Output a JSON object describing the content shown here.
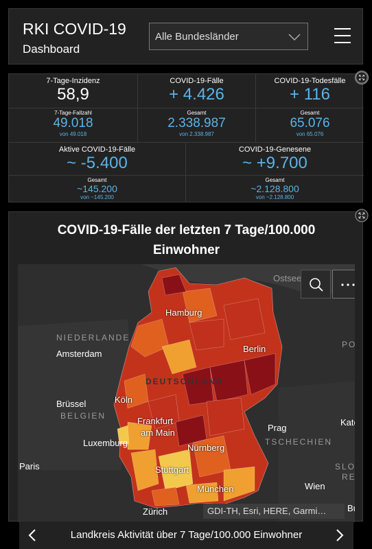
{
  "header": {
    "title": "RKI COVID-19",
    "subtitle": "Dashboard",
    "region_select": "Alle Bundesländer",
    "menu_icon": "hamburger-icon"
  },
  "stats": {
    "incidence": {
      "label": "7-Tage-Inzidenz",
      "value": "58,9",
      "sub_label": "7-Tage-Fallzahl",
      "sub_value": "49.018",
      "sub_from": "von 49.018"
    },
    "cases": {
      "label": "COVID-19-Fälle",
      "value": "+ 4.426",
      "sub_label": "Gesamt",
      "sub_value": "2.338.987",
      "sub_from": "von 2.338.987"
    },
    "deaths": {
      "label": "COVID-19-Todesfälle",
      "value": "+ 116",
      "sub_label": "Gesamt",
      "sub_value": "65.076",
      "sub_from": "von 65.076"
    },
    "active": {
      "label": "Aktive COVID-19-Fälle",
      "value": "~ -5.400",
      "sub_label": "Gesamt",
      "sub_value": "~145.200",
      "sub_from": "von ~145.200"
    },
    "recovered": {
      "label": "COVID-19-Genesene",
      "value": "~ +9.700",
      "sub_label": "Gesamt",
      "sub_value": "~2.128.800",
      "sub_from": "von ~2.128.800"
    }
  },
  "map": {
    "title_line1": "COVID-19-Fälle der letzten 7 Tage/100.000",
    "title_line2": "Einwohner",
    "labels": {
      "ostsee": "Ostsee",
      "hamburg": "Hamburg",
      "niederlande": "NIEDERLANDE",
      "amsterdam": "Amsterdam",
      "berlin": "Berlin",
      "deutschland": "DEUTSCHLAND",
      "koeln": "Köln",
      "bruessel": "Brüssel",
      "belgien": "BELGIEN",
      "frankfurt": "Frankfurt",
      "am_main": "am Main",
      "luxemburg": "Luxemburg",
      "prag": "Prag",
      "tschechien": "TSCHECHIEN",
      "nuernberg": "Nürnberg",
      "paris": "Paris",
      "stuttgart": "Stuttgart",
      "muenchen": "München",
      "wien": "Wien",
      "zuerich": "Zürich",
      "kato": "Kato",
      "po": "PO",
      "slowa": "SLOWA",
      "re": "RE",
      "buda": "Buda"
    },
    "attribution": "GDI-TH, Esri, HERE, Garmi…",
    "legend_colors": [
      "#f2c94c",
      "#f0a030",
      "#e06020",
      "#c0301c",
      "#8a1018"
    ]
  },
  "footer": {
    "label": "Landkreis Aktivität über 7 Tage/100.000 Einwohner"
  }
}
